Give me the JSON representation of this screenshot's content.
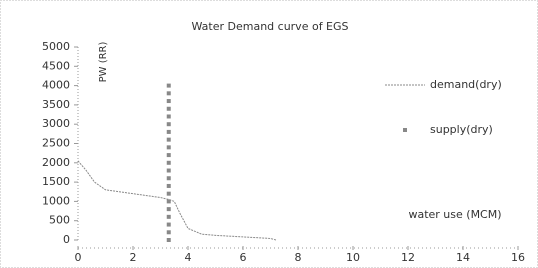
{
  "chart_data": {
    "type": "line",
    "title": "Water Demand curve of EGS",
    "y_label": "PW (RR)",
    "x_label": "water use (MCM)",
    "xlim": [
      0,
      16
    ],
    "xticks": [
      0,
      2,
      4,
      6,
      8,
      10,
      12,
      14,
      16
    ],
    "ylim": [
      0,
      5000
    ],
    "yticks": [
      0,
      500,
      1000,
      1500,
      2000,
      2500,
      3000,
      3500,
      4000,
      4500,
      5000
    ],
    "legend": "right",
    "grid": false,
    "series": [
      {
        "name": "demand(dry)",
        "color": "#888888",
        "style": "line",
        "x": [
          0,
          0.3,
          0.6,
          1,
          1.5,
          2,
          2.5,
          3,
          3.3,
          3.5,
          3.7,
          4,
          4.5,
          5,
          5.5,
          6,
          6.5,
          7,
          7.2
        ],
        "values": [
          2050,
          1800,
          1500,
          1300,
          1250,
          1200,
          1150,
          1100,
          1050,
          1000,
          700,
          300,
          150,
          120,
          100,
          80,
          60,
          40,
          0
        ]
      },
      {
        "name": "supply(dry)",
        "color": "#888888",
        "style": "markers",
        "x": [
          3.3,
          3.3,
          3.3,
          3.3,
          3.3,
          3.3,
          3.3,
          3.3,
          3.3,
          3.3,
          3.3,
          3.3,
          3.3,
          3.3,
          3.3,
          3.3,
          3.3,
          3.3,
          3.3,
          3.3,
          3.3
        ],
        "values": [
          0,
          200,
          400,
          600,
          800,
          1000,
          1200,
          1400,
          1600,
          1800,
          2000,
          2200,
          2400,
          2600,
          2800,
          3000,
          3200,
          3400,
          3600,
          3800,
          4000
        ]
      }
    ]
  }
}
